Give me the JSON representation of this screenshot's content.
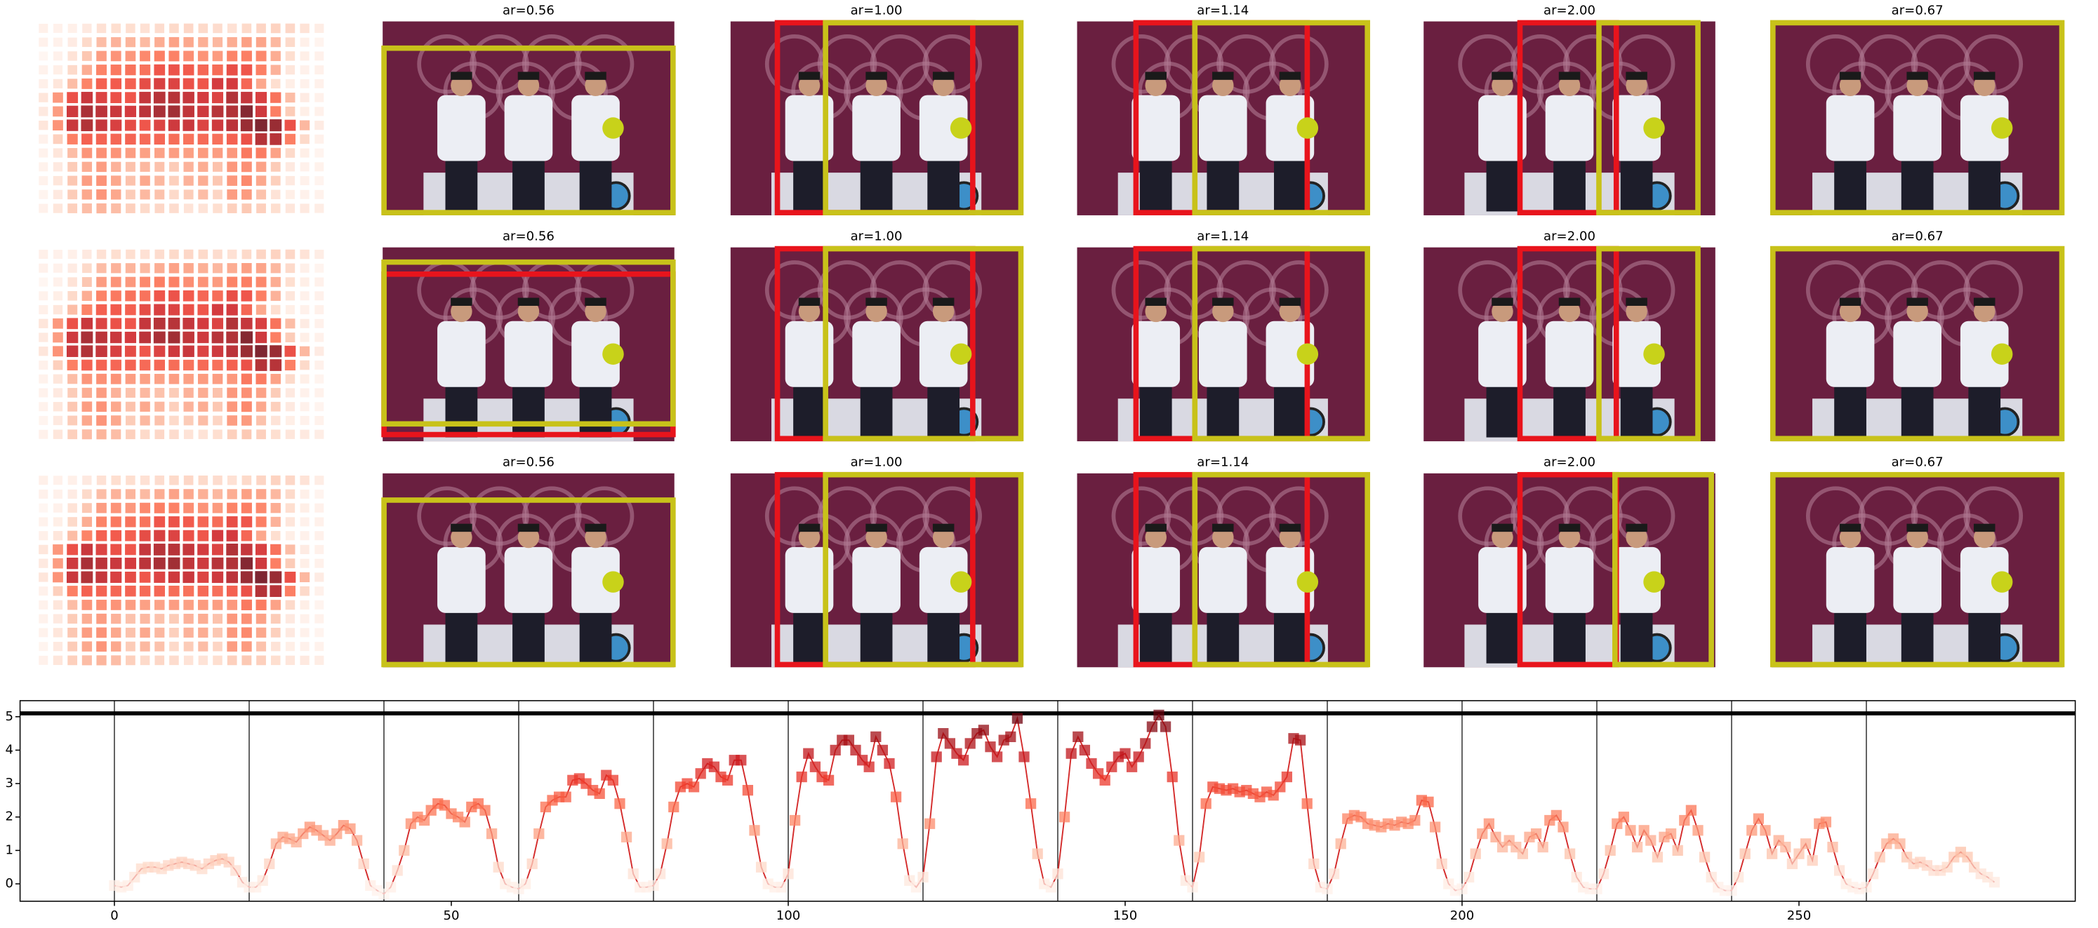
{
  "panel_titles": [
    [
      "ar=0.56",
      "ar=1.00",
      "ar=1.14",
      "ar=2.00",
      "ar=0.67"
    ],
    [
      "ar=0.56",
      "ar=1.00",
      "ar=1.14",
      "ar=2.00",
      "ar=0.67"
    ],
    [
      "ar=0.56",
      "ar=1.00",
      "ar=1.14",
      "ar=2.00",
      "ar=0.67"
    ]
  ],
  "chart_data": {
    "type": "line",
    "color": "#d42a2a",
    "cmap": "Reds",
    "values": [
      -0.05,
      -0.1,
      -0.05,
      0.2,
      0.45,
      0.5,
      0.5,
      0.45,
      0.55,
      0.6,
      0.65,
      0.6,
      0.55,
      0.45,
      0.6,
      0.7,
      0.75,
      0.65,
      0.4,
      0.05,
      -0.1,
      -0.1,
      0.1,
      0.6,
      1.2,
      1.4,
      1.35,
      1.25,
      1.5,
      1.7,
      1.6,
      1.45,
      1.3,
      1.5,
      1.75,
      1.65,
      1.3,
      0.6,
      -0.05,
      -0.2,
      -0.3,
      -0.1,
      0.4,
      1.0,
      1.8,
      2.0,
      1.9,
      2.2,
      2.4,
      2.35,
      2.1,
      2.0,
      1.85,
      2.3,
      2.4,
      2.2,
      1.5,
      0.5,
      0.0,
      -0.1,
      -0.15,
      0.0,
      0.6,
      1.5,
      2.3,
      2.5,
      2.6,
      2.6,
      3.1,
      3.15,
      3.0,
      2.8,
      2.7,
      3.25,
      3.1,
      2.4,
      1.4,
      0.3,
      -0.1,
      -0.1,
      -0.05,
      0.3,
      1.2,
      2.3,
      2.9,
      3.0,
      2.9,
      3.3,
      3.6,
      3.5,
      3.2,
      3.1,
      3.7,
      3.7,
      2.8,
      1.6,
      0.5,
      0.0,
      -0.1,
      -0.1,
      0.3,
      1.9,
      3.2,
      3.9,
      3.5,
      3.2,
      3.1,
      4.0,
      4.3,
      4.3,
      4.0,
      3.7,
      3.5,
      4.4,
      4.0,
      3.6,
      2.6,
      1.2,
      0.1,
      -0.1,
      0.2,
      1.8,
      3.8,
      4.5,
      4.2,
      3.9,
      3.7,
      4.2,
      4.5,
      4.6,
      4.1,
      3.8,
      4.3,
      4.4,
      4.95,
      3.8,
      2.4,
      0.9,
      0.0,
      -0.1,
      0.3,
      2.0,
      3.9,
      4.4,
      4.0,
      3.6,
      3.3,
      3.1,
      3.5,
      3.8,
      3.9,
      3.5,
      3.8,
      4.2,
      4.7,
      5.05,
      4.7,
      3.2,
      1.3,
      0.1,
      -0.1,
      0.8,
      2.4,
      2.9,
      2.85,
      2.8,
      2.85,
      2.75,
      2.8,
      2.7,
      2.6,
      2.75,
      2.65,
      2.9,
      3.2,
      4.35,
      4.3,
      2.4,
      0.6,
      -0.1,
      -0.15,
      0.3,
      1.2,
      1.95,
      2.05,
      2.0,
      1.8,
      1.75,
      1.7,
      1.8,
      1.75,
      1.85,
      1.8,
      1.9,
      2.5,
      2.45,
      1.7,
      0.6,
      0.0,
      -0.2,
      -0.15,
      0.2,
      0.9,
      1.5,
      1.8,
      1.4,
      1.1,
      1.3,
      1.1,
      0.9,
      1.4,
      1.5,
      1.1,
      1.9,
      2.05,
      1.7,
      0.9,
      0.2,
      -0.1,
      -0.15,
      -0.15,
      0.3,
      1.0,
      1.8,
      2.0,
      1.6,
      1.1,
      1.6,
      1.3,
      0.8,
      1.4,
      1.5,
      1.0,
      1.9,
      2.2,
      1.6,
      0.8,
      0.2,
      -0.1,
      -0.2,
      -0.2,
      0.2,
      0.9,
      1.6,
      1.95,
      1.6,
      0.9,
      1.3,
      1.1,
      0.6,
      0.9,
      1.2,
      0.7,
      1.8,
      1.85,
      1.1,
      0.4,
      0.0,
      -0.1,
      -0.15,
      -0.1,
      0.3,
      0.8,
      1.2,
      1.35,
      1.2,
      0.8,
      0.6,
      0.65,
      0.55,
      0.4,
      0.4,
      0.5,
      0.8,
      0.95,
      0.8,
      0.5,
      0.3,
      0.2,
      0.05
    ],
    "xlim": [
      -14,
      291
    ],
    "ylim": [
      -0.52,
      5.48
    ],
    "xticks": [
      0,
      50,
      100,
      150,
      200,
      250
    ],
    "yticks": [
      0,
      1,
      2,
      3,
      4,
      5
    ],
    "vlines": [
      0,
      20,
      40,
      60,
      80,
      100,
      120,
      140,
      160,
      180,
      200,
      220,
      240,
      260
    ],
    "hline": 5.1
  }
}
